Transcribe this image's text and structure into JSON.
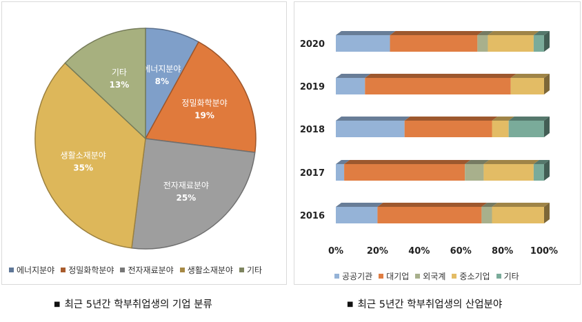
{
  "chart_data": [
    {
      "type": "pie",
      "categories": [
        "에너지분야",
        "정밀화학분야",
        "전자재료분야",
        "생활소재분야",
        "기타"
      ],
      "values": [
        8,
        19,
        25,
        35,
        13
      ],
      "value_labels": [
        "8%",
        "19%",
        "25%",
        "35%",
        "13%"
      ],
      "colors": [
        "#7f9fc9",
        "#e07a3c",
        "#9e9e9e",
        "#ddb75a",
        "#a7b07f"
      ],
      "label_colors": [
        "#ffffff",
        "#ffffff",
        "#ffffff",
        "#ffffff",
        "#ffffff"
      ],
      "legend_position": "bottom",
      "caption": "최근 5년간 학부취업생의 기업 분류"
    },
    {
      "type": "bar",
      "orientation": "horizontal",
      "stacked": "percent",
      "categories": [
        "2020",
        "2019",
        "2018",
        "2017",
        "2016"
      ],
      "series": [
        {
          "name": "공공기관",
          "values": [
            26,
            14,
            33,
            4,
            20
          ],
          "color": "#95b3d7"
        },
        {
          "name": "대기업",
          "values": [
            42,
            70,
            42,
            58,
            50
          ],
          "color": "#e07d42"
        },
        {
          "name": "외국계",
          "values": [
            5,
            0,
            0,
            9,
            5
          ],
          "color": "#a8b08c"
        },
        {
          "name": "중소기업",
          "values": [
            22,
            16,
            8,
            24,
            25
          ],
          "color": "#e3bc65"
        },
        {
          "name": "기타",
          "values": [
            5,
            0,
            17,
            5,
            0
          ],
          "color": "#7aab9a"
        }
      ],
      "xticks": [
        "0%",
        "20%",
        "40%",
        "60%",
        "80%",
        "100%"
      ],
      "xlim": [
        0,
        100
      ],
      "legend_position": "bottom",
      "grid": false,
      "caption": "최근 5년간 학부취업생의 산업분야"
    }
  ]
}
